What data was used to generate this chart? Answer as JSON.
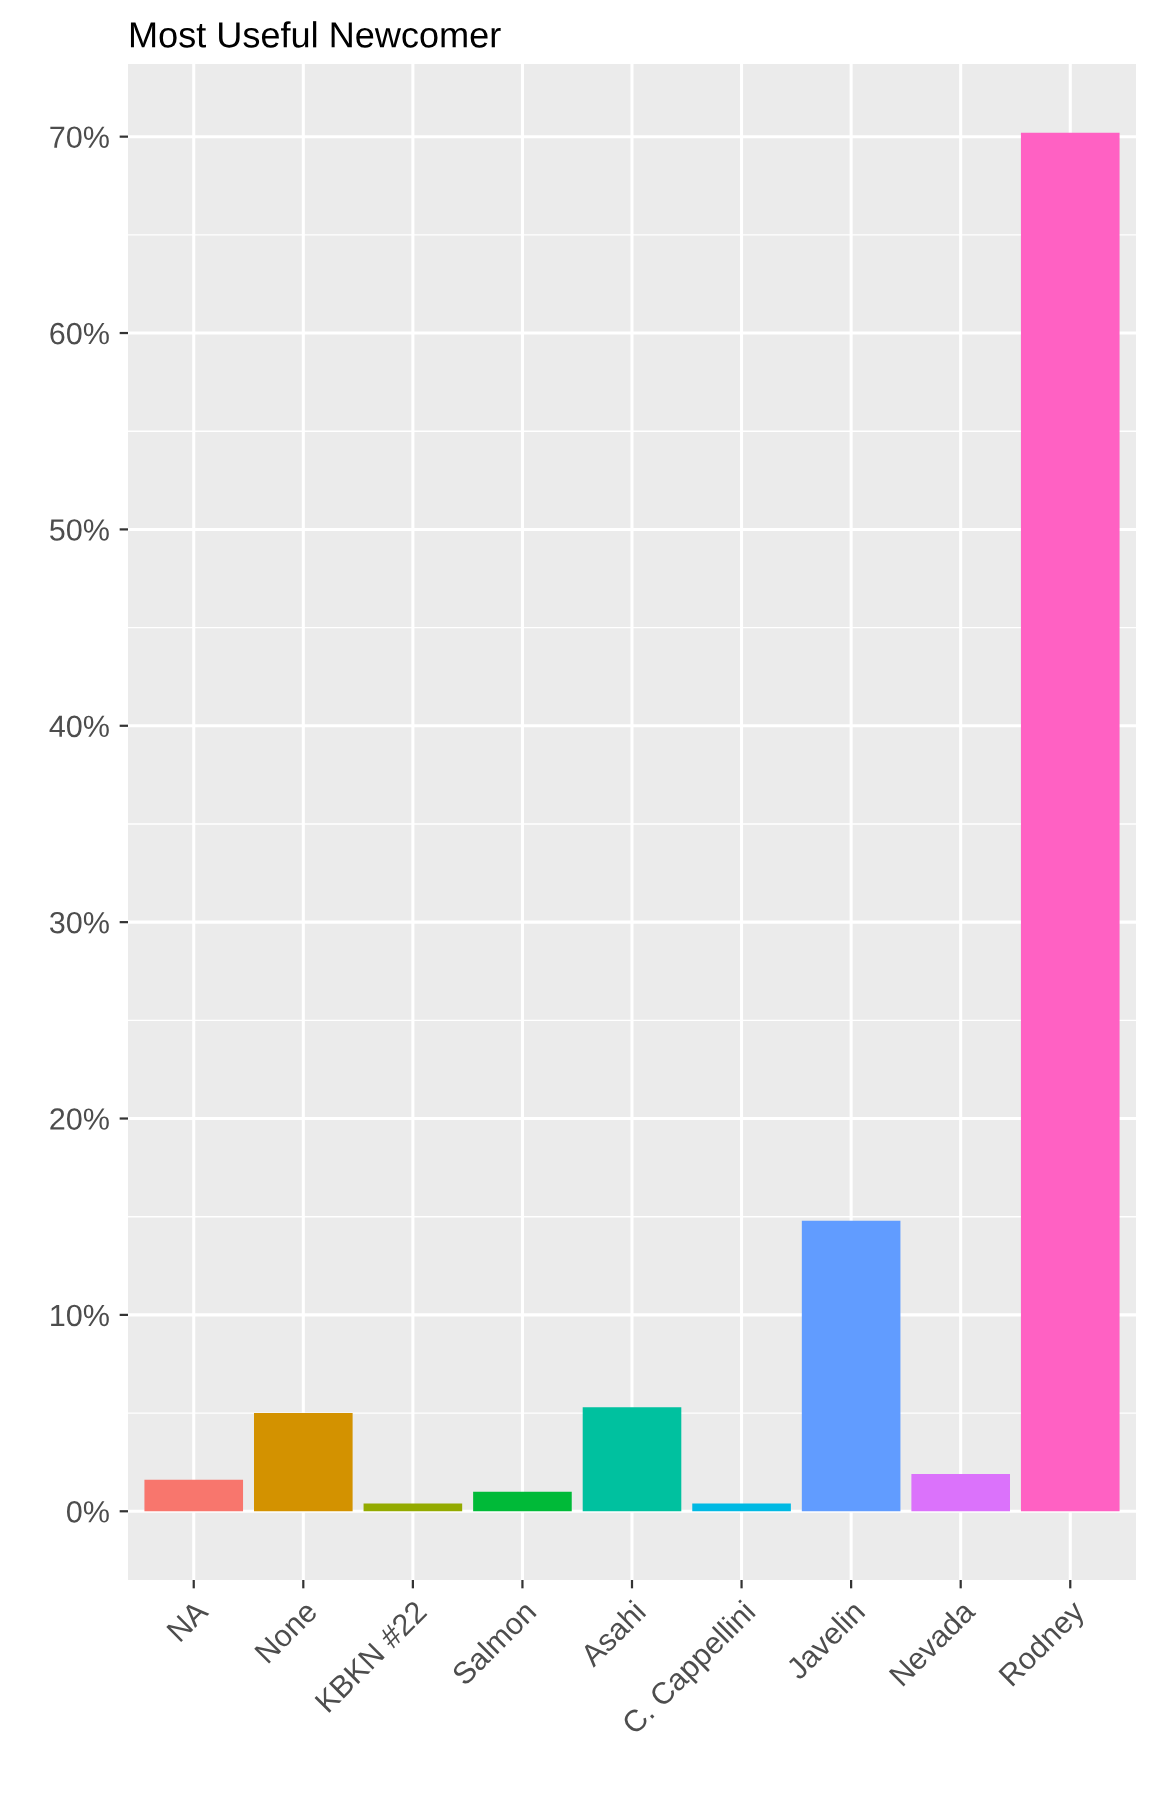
{
  "chart_data": {
    "type": "bar",
    "title": "Most Useful Newcomer",
    "categories": [
      "NA",
      "None",
      "KBKN #22",
      "Salmon",
      "Asahi",
      "C. Cappellini",
      "Javelin",
      "Nevada",
      "Rodney"
    ],
    "values": [
      1.6,
      5.0,
      0.4,
      1.0,
      5.3,
      0.4,
      14.8,
      1.9,
      70.2
    ],
    "colors": [
      "#f8766d",
      "#d39200",
      "#93aa00",
      "#00ba38",
      "#00c19f",
      "#00b9e3",
      "#619cff",
      "#db72fb",
      "#ff61c3"
    ],
    "ylim": [
      -3.5,
      73.7
    ],
    "yticks": [
      {
        "value": 0,
        "label": "0%"
      },
      {
        "value": 10,
        "label": "10%"
      },
      {
        "value": 20,
        "label": "20%"
      },
      {
        "value": 30,
        "label": "30%"
      },
      {
        "value": 40,
        "label": "40%"
      },
      {
        "value": 50,
        "label": "50%"
      },
      {
        "value": 60,
        "label": "60%"
      },
      {
        "value": 70,
        "label": "70%"
      }
    ],
    "grid": true,
    "legend": false
  }
}
